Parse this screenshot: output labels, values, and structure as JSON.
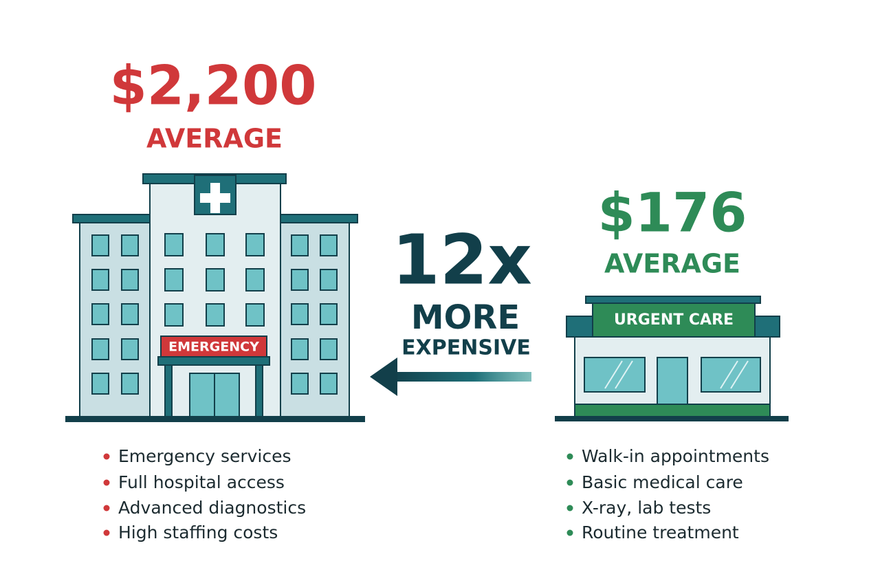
{
  "left": {
    "price": "$2,200",
    "label": "AVERAGE",
    "sign": "EMERGENCY",
    "features": [
      "Emergency services",
      "Full hospital access",
      "Advanced diagnostics",
      "High staffing costs"
    ]
  },
  "middle": {
    "multiplier": "12x",
    "line1": "MORE",
    "line2": "EXPENSIVE"
  },
  "right": {
    "price": "$176",
    "label": "AVERAGE",
    "sign": "URGENT CARE",
    "features": [
      "Walk-in appointments",
      "Basic medical care",
      "X-ray, lab tests",
      "Routine treatment"
    ]
  }
}
